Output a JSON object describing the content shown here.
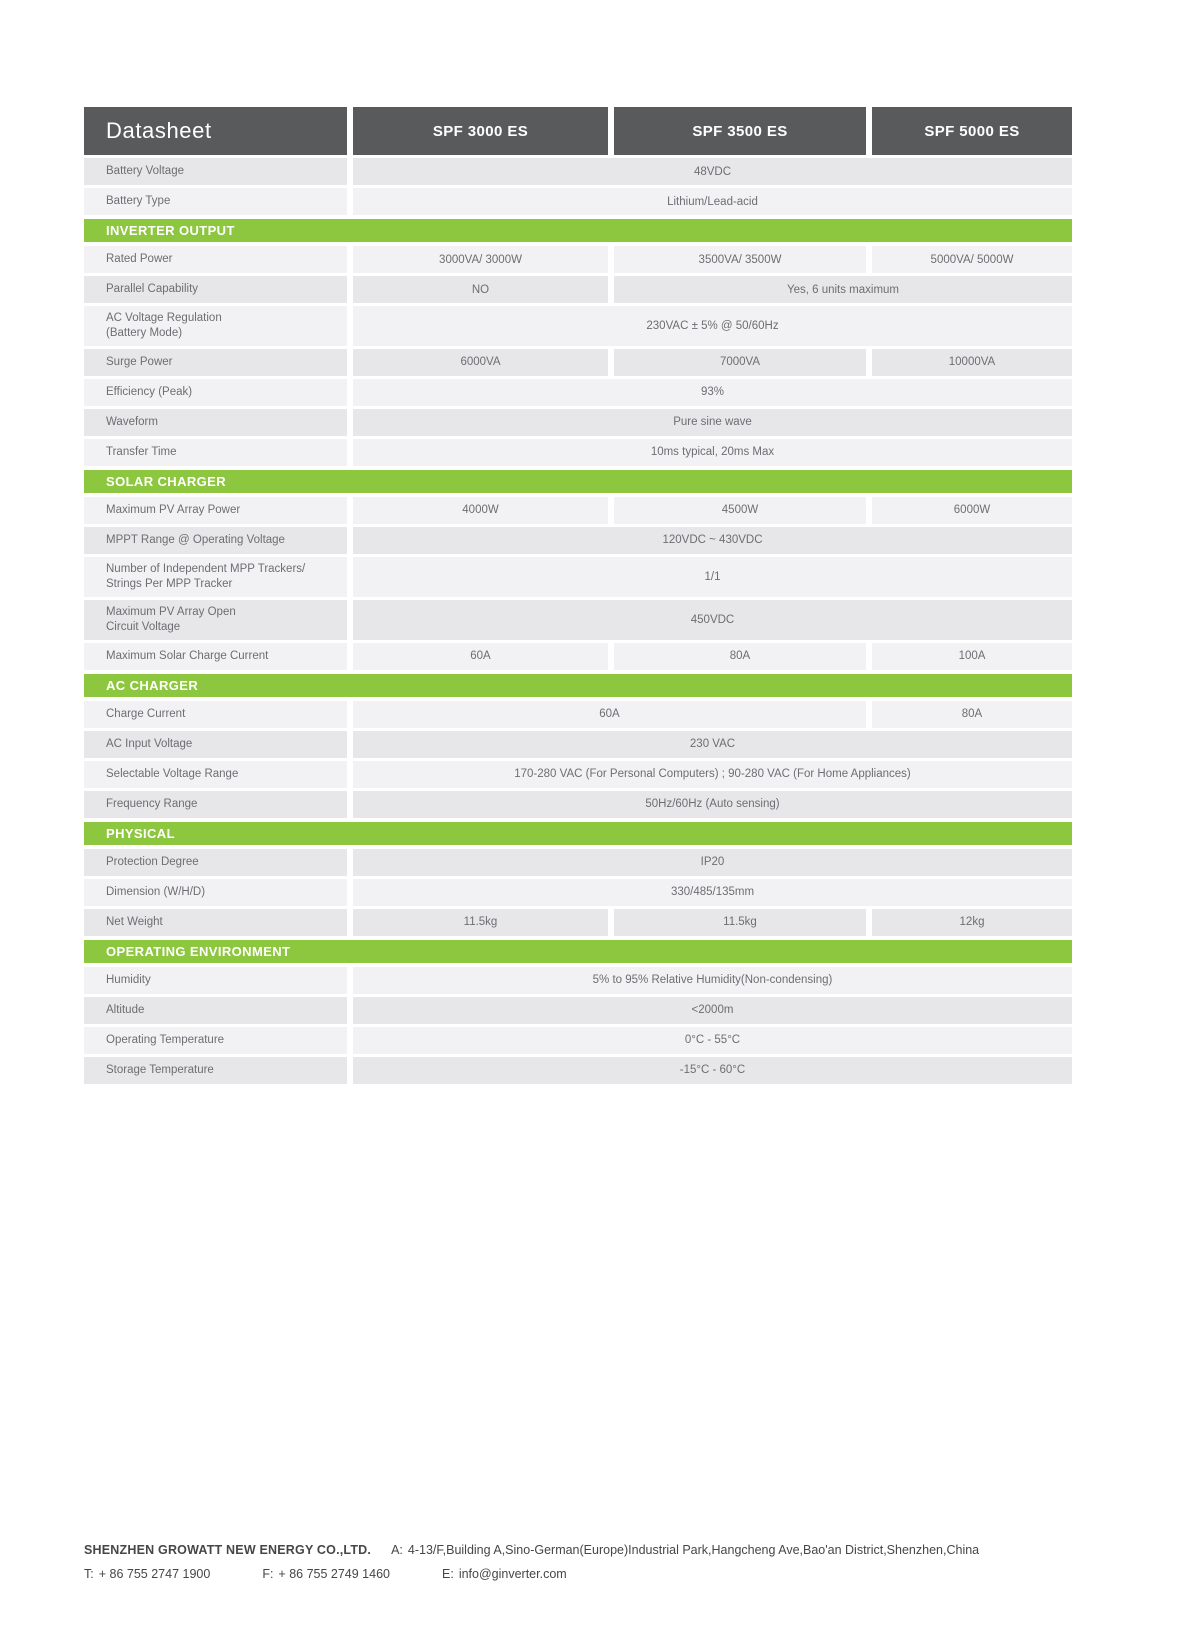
{
  "colors": {
    "header_bg": "#595a5c",
    "section_bg": "#8dc63f",
    "row_dark": "#e7e7e9",
    "row_light": "#f2f2f4",
    "text": "#6d6e71",
    "header_text": "#ffffff",
    "footer_text": "#464649"
  },
  "table": {
    "header": {
      "title": "Datasheet",
      "columns": [
        "SPF 3000 ES",
        "SPF 3500 ES",
        "SPF 5000 ES"
      ]
    },
    "sections": [
      {
        "title": "",
        "rows": [
          {
            "lines": [
              "Battery Voltage"
            ],
            "shade": "dark",
            "cells": [
              {
                "text": "48VDC",
                "span": 3
              }
            ]
          },
          {
            "lines": [
              "Battery Type"
            ],
            "shade": "light",
            "cells": [
              {
                "text": "Lithium/Lead-acid",
                "span": 3
              }
            ]
          }
        ]
      },
      {
        "title": "INVERTER OUTPUT",
        "rows": [
          {
            "lines": [
              "Rated Power"
            ],
            "shade": "light",
            "cells": [
              {
                "text": "3000VA/ 3000W",
                "span": 1
              },
              {
                "text": "3500VA/ 3500W",
                "span": 1
              },
              {
                "text": "5000VA/ 5000W",
                "span": 1
              }
            ]
          },
          {
            "lines": [
              "Parallel Capability"
            ],
            "shade": "dark",
            "cells": [
              {
                "text": "NO",
                "span": 1
              },
              {
                "text": "Yes, 6 units maximum",
                "span": 2
              }
            ]
          },
          {
            "lines": [
              "AC Voltage Regulation",
              "(Battery Mode)"
            ],
            "shade": "light",
            "cells": [
              {
                "text": "230VAC ± 5% @ 50/60Hz",
                "span": 3
              }
            ]
          },
          {
            "lines": [
              "Surge Power"
            ],
            "shade": "dark",
            "cells": [
              {
                "text": "6000VA",
                "span": 1
              },
              {
                "text": "7000VA",
                "span": 1
              },
              {
                "text": "10000VA",
                "span": 1
              }
            ]
          },
          {
            "lines": [
              "Efficiency (Peak)"
            ],
            "shade": "light",
            "cells": [
              {
                "text": "93%",
                "span": 3
              }
            ]
          },
          {
            "lines": [
              "Waveform"
            ],
            "shade": "dark",
            "cells": [
              {
                "text": "Pure sine wave",
                "span": 3
              }
            ]
          },
          {
            "lines": [
              "Transfer Time"
            ],
            "shade": "light",
            "cells": [
              {
                "text": "10ms typical, 20ms Max",
                "span": 3
              }
            ]
          }
        ]
      },
      {
        "title": "SOLAR CHARGER",
        "rows": [
          {
            "lines": [
              "Maximum PV Array Power"
            ],
            "shade": "light",
            "cells": [
              {
                "text": "4000W",
                "span": 1
              },
              {
                "text": "4500W",
                "span": 1
              },
              {
                "text": "6000W",
                "span": 1
              }
            ]
          },
          {
            "lines": [
              "MPPT Range @ Operating Voltage"
            ],
            "shade": "dark",
            "cells": [
              {
                "text": "120VDC ~ 430VDC",
                "span": 3
              }
            ]
          },
          {
            "lines": [
              "Number of Independent MPP Trackers/",
              "Strings Per MPP Tracker"
            ],
            "shade": "light",
            "cells": [
              {
                "text": "1/1",
                "span": 3
              }
            ]
          },
          {
            "lines": [
              "Maximum PV Array Open",
              "Circuit Voltage"
            ],
            "shade": "dark",
            "cells": [
              {
                "text": "450VDC",
                "span": 3
              }
            ]
          },
          {
            "lines": [
              "Maximum Solar Charge Current"
            ],
            "shade": "light",
            "cells": [
              {
                "text": "60A",
                "span": 1
              },
              {
                "text": "80A",
                "span": 1
              },
              {
                "text": "100A",
                "span": 1
              }
            ]
          }
        ]
      },
      {
        "title": "AC CHARGER",
        "rows": [
          {
            "lines": [
              "Charge Current"
            ],
            "shade": "light",
            "cells": [
              {
                "text": "60A",
                "span": 2
              },
              {
                "text": "80A",
                "span": 1
              }
            ]
          },
          {
            "lines": [
              "AC Input Voltage"
            ],
            "shade": "dark",
            "cells": [
              {
                "text": "230 VAC",
                "span": 3
              }
            ]
          },
          {
            "lines": [
              "Selectable Voltage Range"
            ],
            "shade": "light",
            "cells": [
              {
                "text": "170-280 VAC (For Personal Computers) ; 90-280 VAC (For Home Appliances)",
                "span": 3
              }
            ]
          },
          {
            "lines": [
              "Frequency Range"
            ],
            "shade": "dark",
            "cells": [
              {
                "text": "50Hz/60Hz (Auto sensing)",
                "span": 3
              }
            ]
          }
        ]
      },
      {
        "title": "PHYSICAL",
        "rows": [
          {
            "lines": [
              "Protection Degree"
            ],
            "shade": "dark",
            "cells": [
              {
                "text": "IP20",
                "span": 3
              }
            ]
          },
          {
            "lines": [
              "Dimension (W/H/D)"
            ],
            "shade": "light",
            "cells": [
              {
                "text": "330/485/135mm",
                "span": 3
              }
            ]
          },
          {
            "lines": [
              "Net Weight"
            ],
            "shade": "dark",
            "cells": [
              {
                "text": "11.5kg",
                "span": 1
              },
              {
                "text": "11.5kg",
                "span": 1
              },
              {
                "text": "12kg",
                "span": 1
              }
            ]
          }
        ]
      },
      {
        "title": "OPERATING ENVIRONMENT",
        "rows": [
          {
            "lines": [
              "Humidity"
            ],
            "shade": "light",
            "cells": [
              {
                "text": "5% to 95% Relative Humidity(Non-condensing)",
                "span": 3
              }
            ]
          },
          {
            "lines": [
              "Altitude"
            ],
            "shade": "dark",
            "cells": [
              {
                "text": "<2000m",
                "span": 3
              }
            ]
          },
          {
            "lines": [
              "Operating Temperature"
            ],
            "shade": "light",
            "cells": [
              {
                "text": "0°C - 55°C",
                "span": 3
              }
            ]
          },
          {
            "lines": [
              "Storage Temperature"
            ],
            "shade": "dark",
            "cells": [
              {
                "text": "-15°C - 60°C",
                "span": 3
              }
            ]
          }
        ]
      }
    ]
  },
  "footer": {
    "company": "SHENZHEN GROWATT NEW ENERGY CO.,LTD.",
    "address_label": "A:",
    "address": "4-13/F,Building A,Sino-German(Europe)Industrial Park,Hangcheng Ave,Bao'an District,Shenzhen,China",
    "tel_label": "T:",
    "tel": "+ 86 755 2747 1900",
    "fax_label": "F:",
    "fax": "+ 86 755 2749 1460",
    "email_label": "E:",
    "email": "info@ginverter.com"
  }
}
